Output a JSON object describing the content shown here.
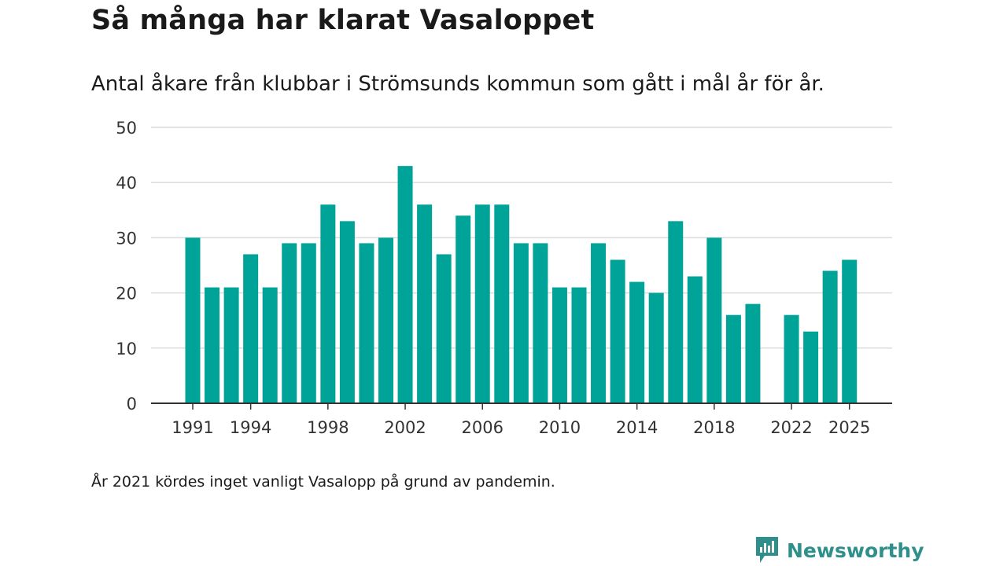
{
  "colors": {
    "bar": "#00a398",
    "grid": "#dcdcdc",
    "axis": "#333333",
    "brand": "#2f8f8a"
  },
  "footnote": "År 2021 kördes inget vanligt Vasalopp på grund av pandemin.",
  "brand": {
    "name": "Newsworthy",
    "icon": "newsworthy-logo-icon"
  },
  "chart_data": {
    "type": "bar",
    "title": "Så många har klarat Vasaloppet",
    "subtitle": "Antal åkare från klubbar i Strömsunds kommun som gått i mål år för år.",
    "xlabel": "",
    "ylabel": "",
    "ylim": [
      0,
      50
    ],
    "yticks": [
      0,
      10,
      20,
      30,
      40,
      50
    ],
    "xticks": [
      1991,
      1994,
      1998,
      2002,
      2006,
      2010,
      2014,
      2018,
      2022,
      2025
    ],
    "grid": true,
    "categories": [
      1991,
      1992,
      1993,
      1994,
      1995,
      1996,
      1997,
      1998,
      1999,
      2000,
      2001,
      2002,
      2003,
      2004,
      2005,
      2006,
      2007,
      2008,
      2009,
      2010,
      2011,
      2012,
      2013,
      2014,
      2015,
      2016,
      2017,
      2018,
      2019,
      2020,
      2021,
      2022,
      2023,
      2024,
      2025
    ],
    "values": [
      30,
      21,
      21,
      27,
      21,
      29,
      29,
      36,
      33,
      29,
      30,
      43,
      36,
      27,
      34,
      36,
      36,
      29,
      29,
      21,
      21,
      29,
      26,
      22,
      20,
      33,
      23,
      30,
      16,
      18,
      null,
      16,
      13,
      24,
      26
    ]
  }
}
